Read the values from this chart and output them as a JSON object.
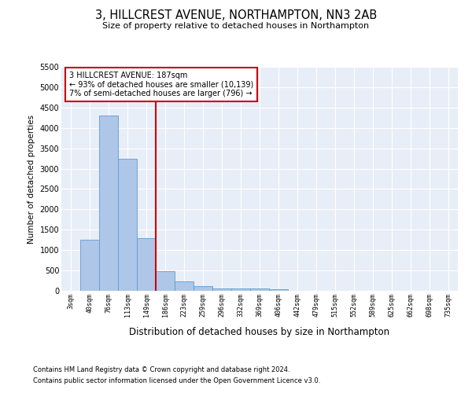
{
  "title": "3, HILLCREST AVENUE, NORTHAMPTON, NN3 2AB",
  "subtitle": "Size of property relative to detached houses in Northampton",
  "xlabel": "Distribution of detached houses by size in Northampton",
  "ylabel": "Number of detached properties",
  "footnote1": "Contains HM Land Registry data © Crown copyright and database right 2024.",
  "footnote2": "Contains public sector information licensed under the Open Government Licence v3.0.",
  "annotation_title": "3 HILLCREST AVENUE: 187sqm",
  "annotation_line1": "← 93% of detached houses are smaller (10,139)",
  "annotation_line2": "7% of semi-detached houses are larger (796) →",
  "bar_color": "#aec6e8",
  "bar_edge_color": "#5b9bd5",
  "vline_color": "#cc0000",
  "annotation_box_color": "#cc0000",
  "background_color": "#e8eef7",
  "categories": [
    "3sqm",
    "40sqm",
    "76sqm",
    "113sqm",
    "149sqm",
    "186sqm",
    "223sqm",
    "259sqm",
    "296sqm",
    "332sqm",
    "369sqm",
    "406sqm",
    "442sqm",
    "479sqm",
    "515sqm",
    "552sqm",
    "589sqm",
    "625sqm",
    "662sqm",
    "698sqm",
    "735sqm"
  ],
  "bar_heights": [
    0,
    1250,
    4300,
    3250,
    1300,
    475,
    225,
    110,
    65,
    50,
    50,
    45,
    0,
    0,
    0,
    0,
    0,
    0,
    0,
    0,
    0
  ],
  "ylim": [
    0,
    5500
  ],
  "yticks": [
    0,
    500,
    1000,
    1500,
    2000,
    2500,
    3000,
    3500,
    4000,
    4500,
    5000,
    5500
  ],
  "vline_x_index": 5,
  "title_fontsize": 10.5,
  "subtitle_fontsize": 8,
  "ylabel_fontsize": 7.5,
  "xlabel_fontsize": 8.5,
  "tick_fontsize": 6,
  "annotation_fontsize": 7,
  "footnote_fontsize": 6
}
